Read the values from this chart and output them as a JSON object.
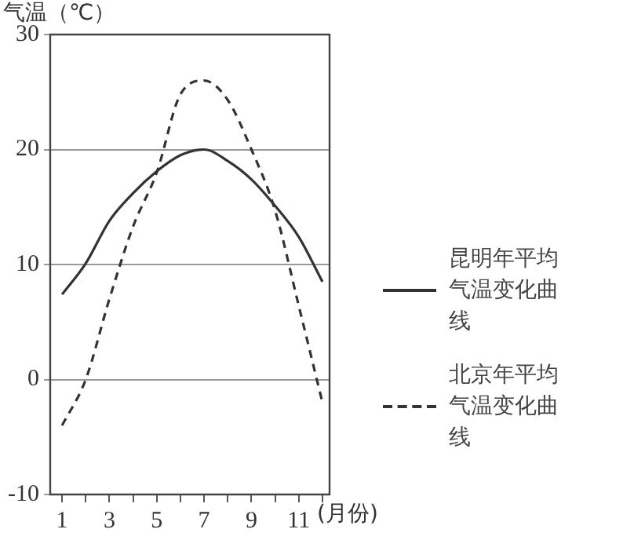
{
  "chart_data": {
    "type": "line",
    "xlabel": "(月份)",
    "ylabel": "气温（℃）",
    "x": [
      1,
      2,
      3,
      4,
      5,
      6,
      7,
      8,
      9,
      10,
      11,
      12
    ],
    "series": [
      {
        "name": "昆明年平均气温变化曲线",
        "color": "#333333",
        "line_style": "solid",
        "values": [
          7.4,
          10.1,
          13.8,
          16.2,
          18.1,
          19.5,
          20,
          19,
          17.4,
          15.1,
          12.4,
          8.5
        ]
      },
      {
        "name": "北京年平均气温变化曲线",
        "color": "#333333",
        "line_style": "dashed",
        "values": [
          -4,
          0,
          7,
          13.3,
          18,
          24.8,
          26,
          24.3,
          20,
          14.7,
          6.4,
          -2
        ]
      }
    ],
    "xlim": [
      0.5,
      12.3
    ],
    "xticks": [
      1,
      {
        "value": 2,
        "label": null
      },
      3,
      {
        "value": 4,
        "label": null
      },
      5,
      {
        "value": 6,
        "label": null
      },
      7,
      {
        "value": 8,
        "label": null
      },
      9,
      {
        "value": 10,
        "label": null
      },
      11,
      {
        "value": 12,
        "label": null
      }
    ],
    "ylim": [
      -10,
      30
    ],
    "yticks": [
      -10,
      0,
      10,
      20,
      30
    ],
    "grid": "y",
    "legend": "right",
    "marker": "none"
  }
}
